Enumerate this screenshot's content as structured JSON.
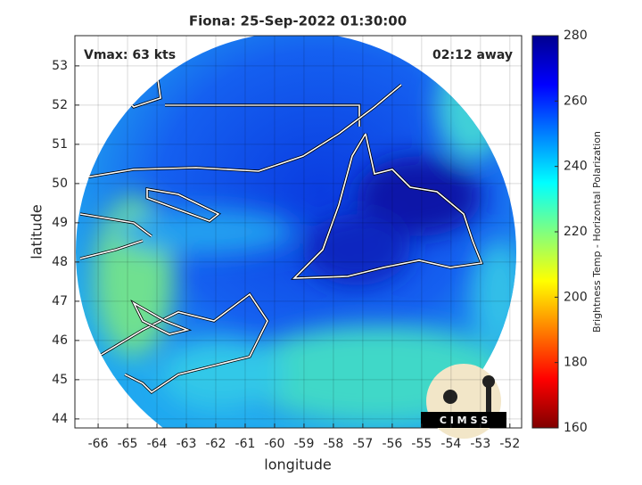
{
  "title": "Fiona: 25-Sep-2022 01:30:00",
  "annotations": {
    "intensity": "Vmax: 63 kts",
    "time_offset": "02:12 away"
  },
  "x_axis": {
    "label": "longitude",
    "lim": [
      -66.79,
      -51.6
    ],
    "ticks": [
      -66,
      -65,
      -64,
      -63,
      -62,
      -61,
      -60,
      -59,
      -58,
      -57,
      -56,
      -55,
      -54,
      -53,
      -52
    ]
  },
  "y_axis": {
    "label": "latitude",
    "lim": [
      43.77,
      53.77
    ],
    "ticks": [
      44,
      45,
      46,
      47,
      48,
      49,
      50,
      51,
      52,
      53
    ]
  },
  "colorbar": {
    "label": "Brightness Temp - Horizontal Polarization",
    "lim": [
      160,
      280
    ],
    "ticks": [
      160,
      180,
      200,
      220,
      240,
      260,
      280
    ]
  },
  "logo": "C I M S S"
}
